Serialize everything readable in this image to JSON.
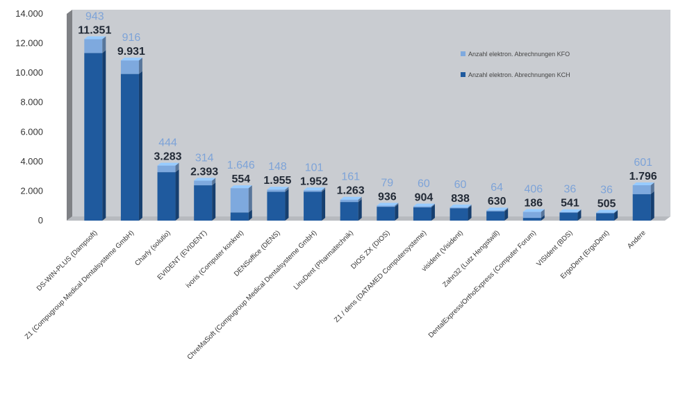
{
  "chart_data": {
    "type": "bar",
    "stacked": true,
    "title": "",
    "xlabel": "",
    "ylabel": "",
    "ylim": [
      0,
      14000
    ],
    "yticks": [
      "0",
      "2.000",
      "4.000",
      "6.000",
      "8.000",
      "10.000",
      "12.000",
      "14.000"
    ],
    "ytick_values": [
      0,
      2000,
      4000,
      6000,
      8000,
      10000,
      12000,
      14000
    ],
    "grid": false,
    "legend_position": "top-right",
    "categories": [
      "DS-WIN-PLUS (Dampsoft)",
      "Z1 (Compugroup Medical Dentalsysteme GmbH)",
      "Charly (solutio)",
      "EVIDENT (EVIDENT)",
      "ivoris (Computer konkret)",
      "DENSoffice (DENS)",
      "ChreMaSoft (Compugroup Medical Dentalsysteme GmbH)",
      "LinuDent (Pharmatechnik)",
      "DIOS ZX (DIOS)",
      "Z1 / dens (DATAMED Computersysteme)",
      "visident (Visident)",
      "Zahn32 (Lutz Hengstwill)",
      "DentalExpress/OrthoExpress (Computer Forum)",
      "VISIdent (BDS)",
      "ErgoDent (ErgoDent)",
      "Andere"
    ],
    "series": [
      {
        "name": "Anzahl elektron. Abrechnungen KCH",
        "color": "#1f5a9e",
        "values": [
          11351,
          9931,
          3283,
          2393,
          554,
          1955,
          1952,
          1263,
          936,
          904,
          838,
          630,
          186,
          541,
          505,
          1796
        ],
        "labels": [
          "11.351",
          "9.931",
          "3.283",
          "2.393",
          "554",
          "1.955",
          "1.952",
          "1.263",
          "936",
          "904",
          "838",
          "630",
          "186",
          "541",
          "505",
          "1.796"
        ]
      },
      {
        "name": "Anzahl elektron. Abrechnungen KFO",
        "color": "#7ea9de",
        "values": [
          943,
          916,
          444,
          314,
          1646,
          148,
          101,
          161,
          79,
          60,
          60,
          64,
          406,
          36,
          36,
          601
        ],
        "labels": [
          "943",
          "916",
          "444",
          "314",
          "1.646",
          "148",
          "101",
          "161",
          "79",
          "60",
          "60",
          "64",
          "406",
          "36",
          "36",
          "601"
        ]
      }
    ]
  },
  "legend": {
    "kfo": "Anzahl elektron. Abrechnungen KFO",
    "kch": "Anzahl elektron. Abrechnungen KCH"
  },
  "colors": {
    "background": "#c9ccd1",
    "floor": "#b7babf",
    "side_wall": "#7f8185",
    "kch": "#1f5a9e",
    "kfo": "#7ea9de"
  }
}
